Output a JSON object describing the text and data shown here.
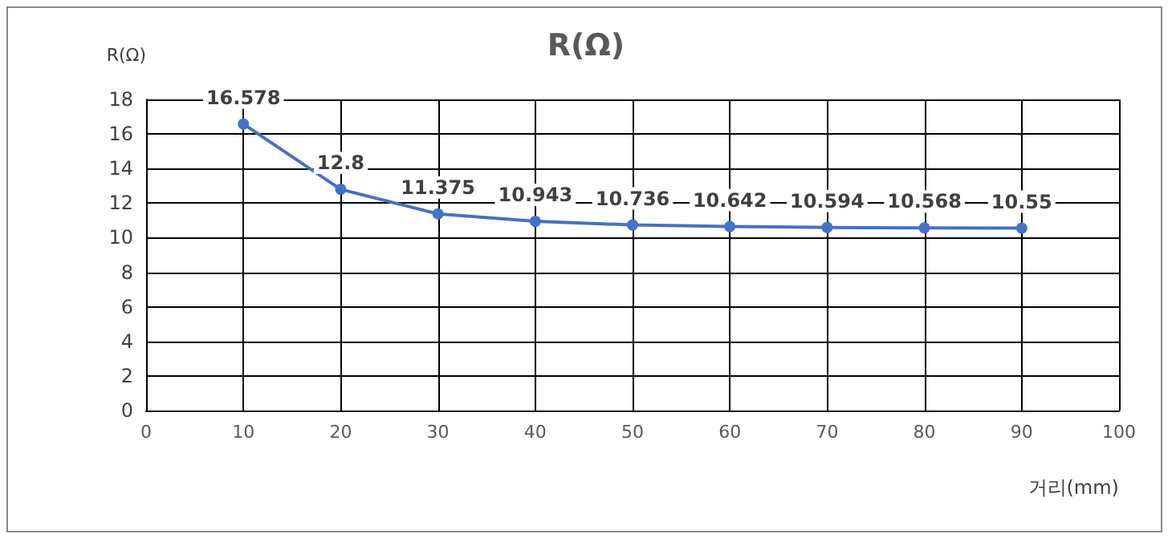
{
  "chart_data": {
    "type": "line",
    "title": "R(Ω)",
    "xlabel": "거리(mm)",
    "ylabel": "R(Ω)",
    "x": [
      10,
      20,
      30,
      40,
      50,
      60,
      70,
      80,
      90
    ],
    "series": [
      {
        "color": "#4472c4",
        "values": [
          16.578,
          12.8,
          11.375,
          10.943,
          10.736,
          10.642,
          10.594,
          10.568,
          10.55
        ]
      }
    ],
    "xlim": [
      0,
      100
    ],
    "xticks": [
      0,
      10,
      20,
      30,
      40,
      50,
      60,
      70,
      80,
      90,
      100
    ],
    "ylim": [
      0,
      18
    ],
    "yticks": [
      0,
      2,
      4,
      6,
      8,
      10,
      12,
      14,
      16,
      18
    ],
    "grid": true,
    "marker": "circle",
    "line_style": "solid",
    "data_labels": true
  }
}
